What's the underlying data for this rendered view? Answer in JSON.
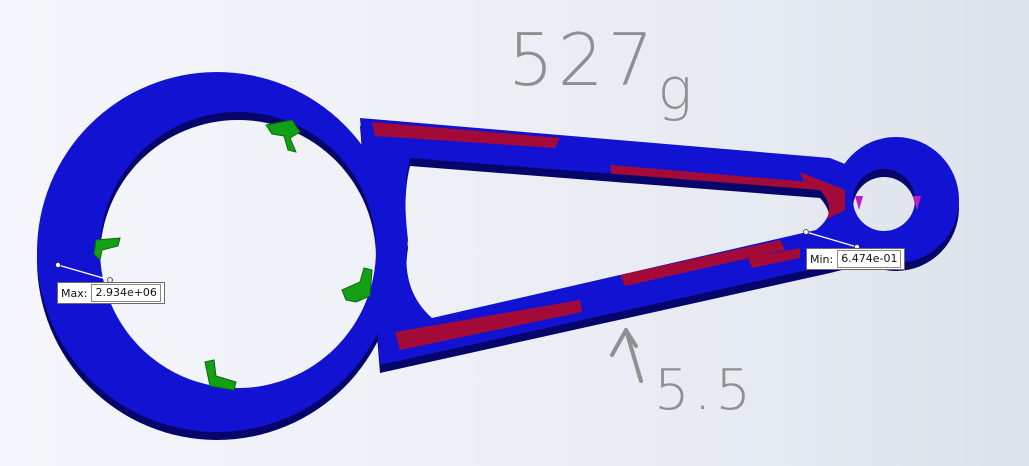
{
  "probes": {
    "max": {
      "key": "Max:",
      "value": "2.934e+06"
    },
    "min": {
      "key": "Min:",
      "value": "6.474e-01"
    }
  },
  "annotations": {
    "mass_main": "527",
    "mass_unit": "g",
    "load_value": "5.5"
  },
  "colors": {
    "part_blue": "#1212d2",
    "part_edge": "#06066a",
    "stress_red": "#b00a2a",
    "fixture_green": "#14a014",
    "load_magenta": "#c21ac2"
  }
}
